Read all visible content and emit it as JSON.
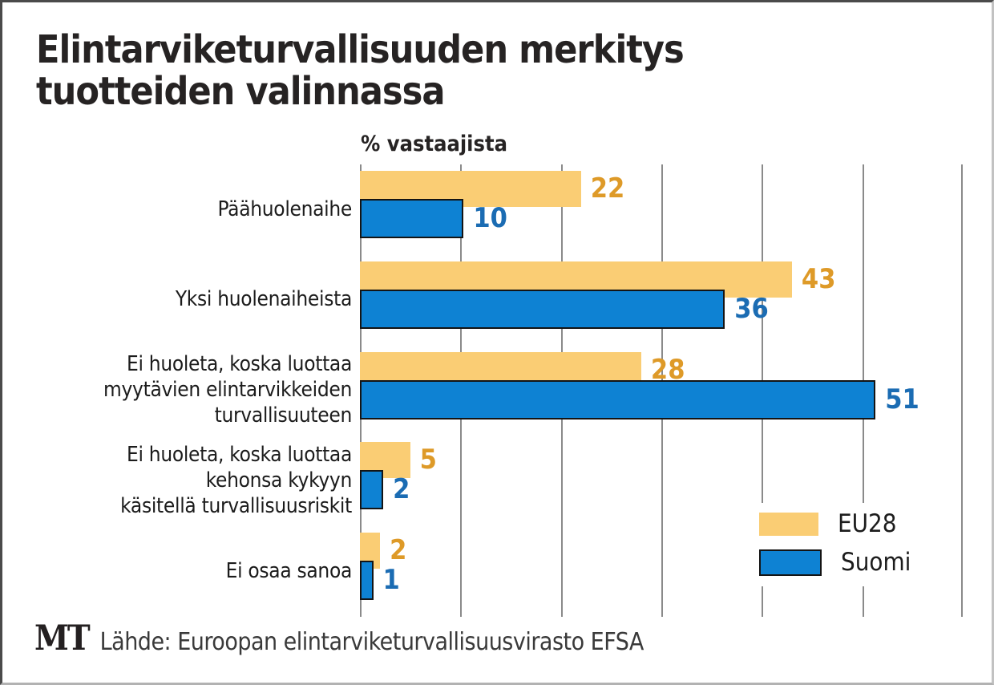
{
  "header": {
    "title_line1": "Elintarviketurvallisuuden merkitys",
    "title_line2": "tuotteiden valinnassa"
  },
  "chart_data": {
    "type": "bar",
    "orientation": "horizontal",
    "title": "Elintarviketurvallisuuden merkitys tuotteiden valinnassa",
    "axis_note": "% vastaajista",
    "categories": [
      "Päähuolenaihe",
      "Yksi huolenaiheista",
      "Ei huoleta, koska luottaa myytävien elintarvikkeiden turvallisuuteen",
      "Ei huoleta, koska luottaa kehonsa kykyyn käsitellä turvallisuusriskit",
      "Ei osaa sanoa"
    ],
    "category_label_lines": [
      [
        "Päähuolenaihe"
      ],
      [
        "Yksi huolenaiheista"
      ],
      [
        "Ei huoleta, koska luottaa",
        "myytävien elintarvikkeiden",
        "turvallisuuteen"
      ],
      [
        "Ei huoleta, koska luottaa",
        "kehonsa kykyyn",
        "käsitellä turvallisuusriskit"
      ],
      [
        "Ei osaa sanoa"
      ]
    ],
    "series": [
      {
        "name": "EU28",
        "values": [
          22,
          43,
          28,
          5,
          2
        ],
        "color": "#FACD74",
        "value_color": "#DE9A28"
      },
      {
        "name": "Suomi",
        "values": [
          10,
          36,
          51,
          2,
          1
        ],
        "color": "#0E82D3",
        "value_color": "#1B6CB3",
        "bar_border_color": "#141414"
      }
    ],
    "xlim": [
      0,
      60
    ],
    "grid_step": 10,
    "grid": true,
    "gridline_color": "#8a8a8a",
    "legend_position": "right-lower",
    "value_labels": "end-of-bar"
  },
  "footer": {
    "logo": "MT",
    "source": "Lähde: Euroopan elintarviketurvallisuusvirasto EFSA"
  }
}
